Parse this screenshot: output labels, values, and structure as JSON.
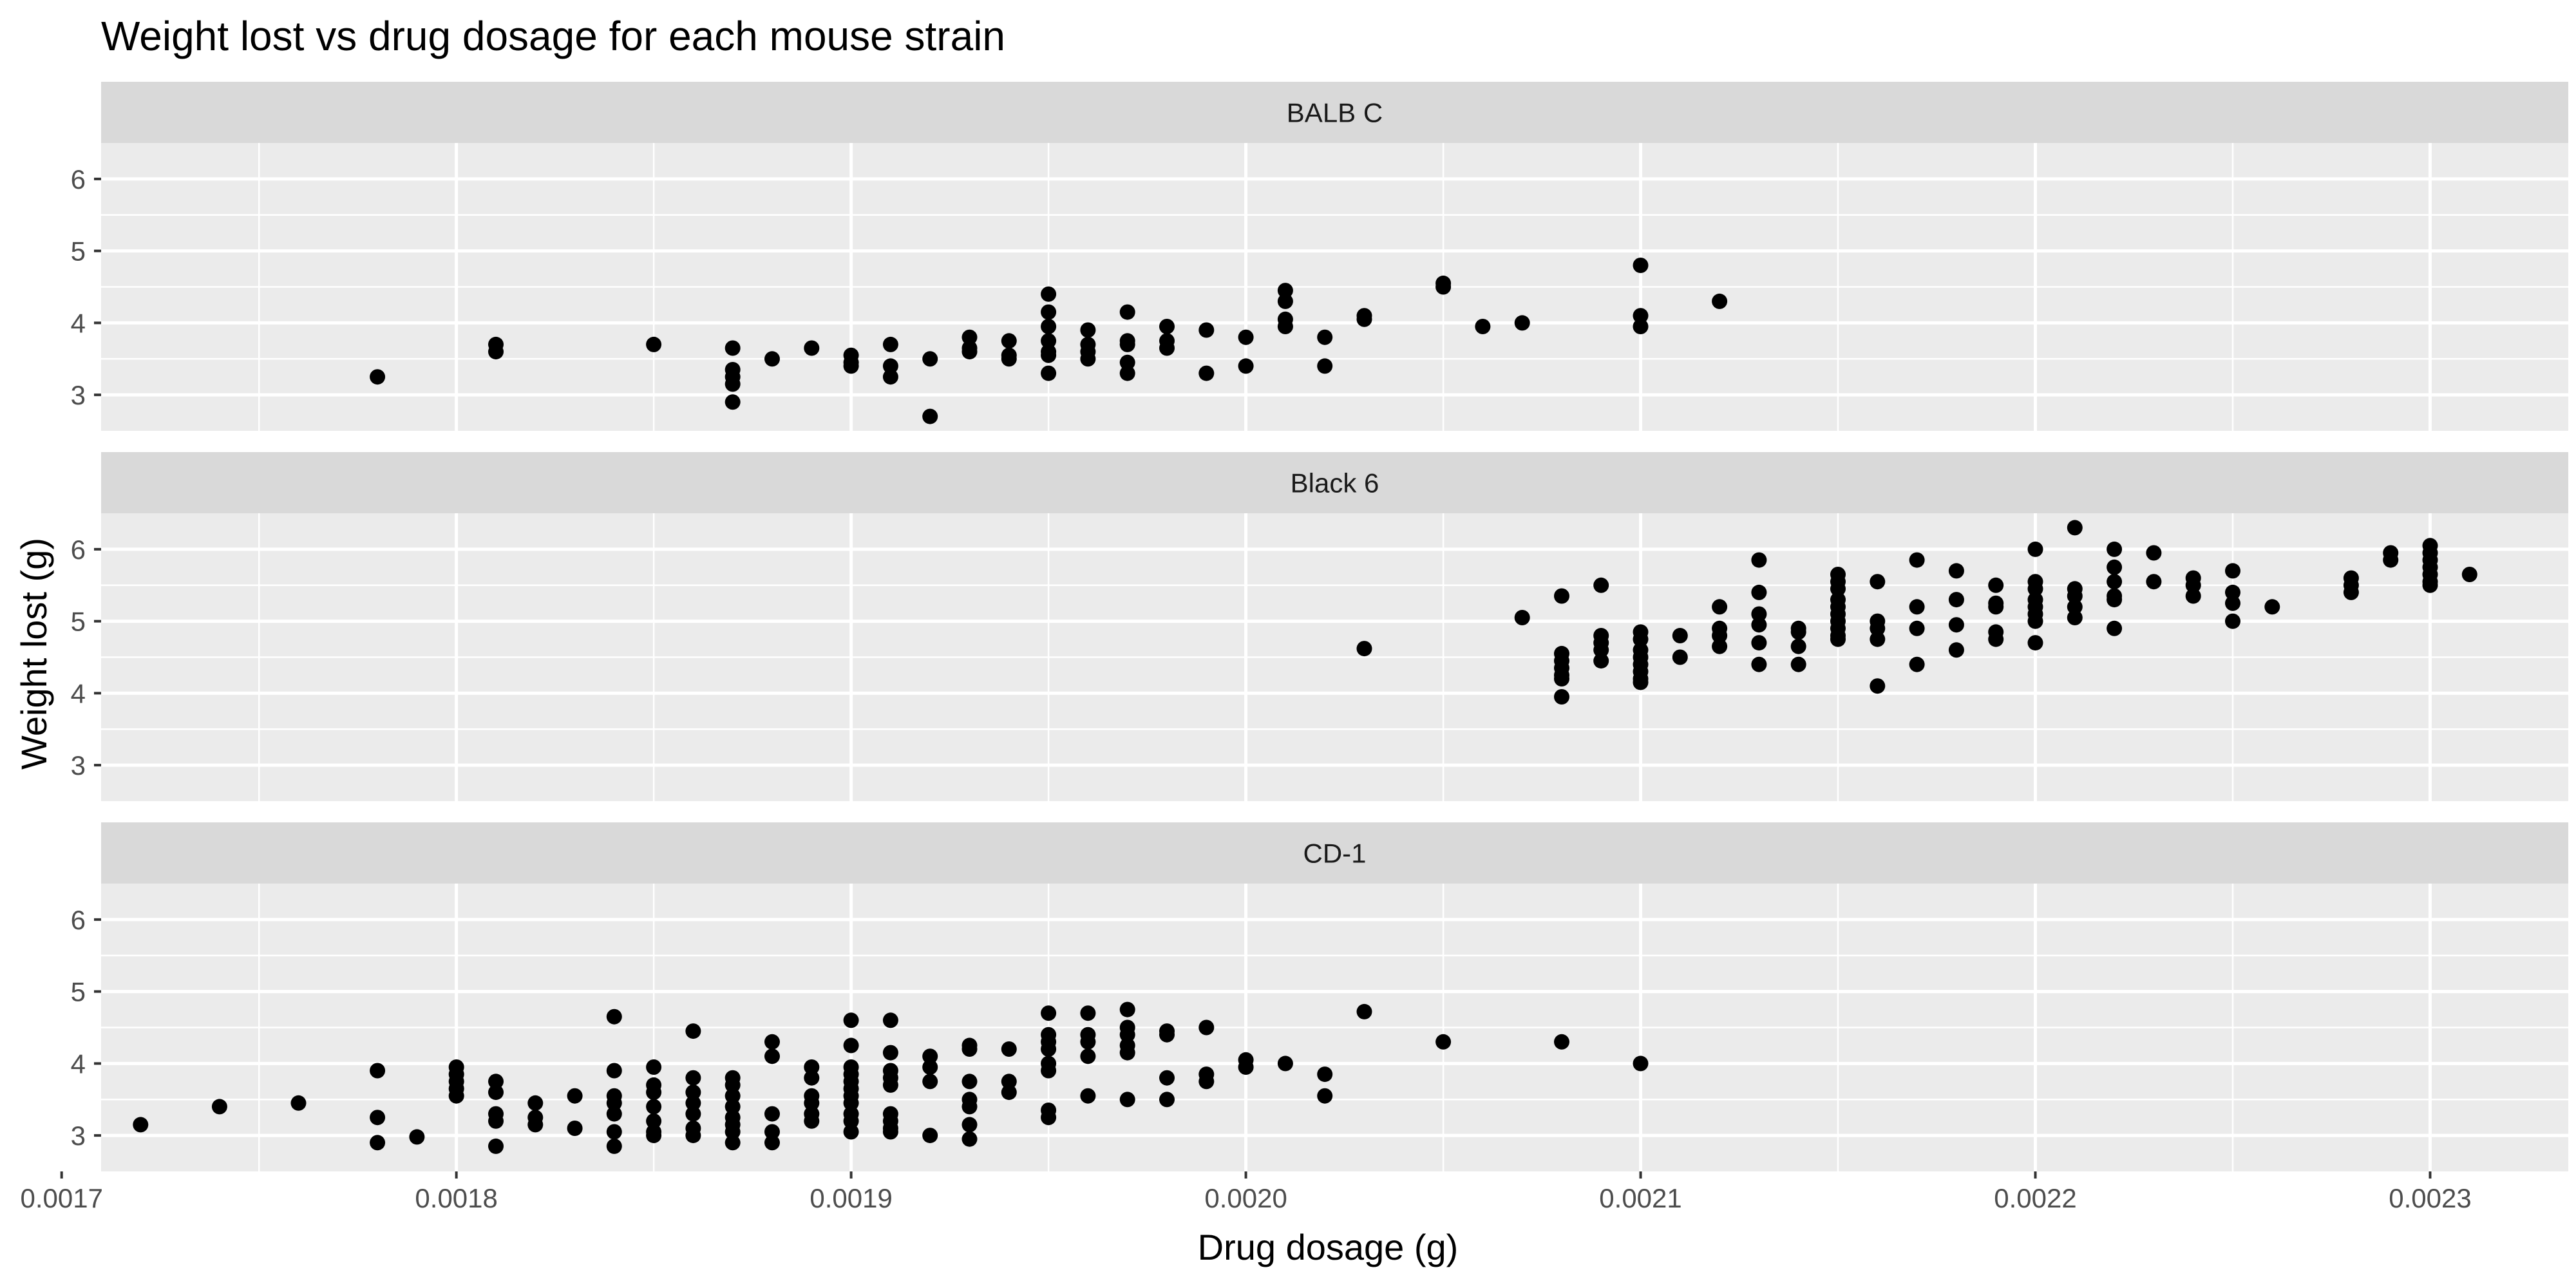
{
  "chart_data": {
    "type": "scatter",
    "title": "Weight lost vs drug dosage for each mouse strain",
    "xlabel": "Drug dosage (g)",
    "ylabel": "Weight lost (g)",
    "xlim": [
      0.00171,
      0.002335
    ],
    "ylim": [
      2.5,
      6.5
    ],
    "x_ticks": [
      0.0017,
      0.0018,
      0.0019,
      0.002,
      0.0021,
      0.0022,
      0.0023
    ],
    "x_tick_labels": [
      "0.0017",
      "0.0018",
      "0.0019",
      "0.0020",
      "0.0021",
      "0.0022",
      "0.0023"
    ],
    "y_ticks": [
      3,
      4,
      5,
      6
    ],
    "y_tick_labels": [
      "3",
      "4",
      "5",
      "6"
    ],
    "grid": true,
    "point_color": "#000000",
    "panel_background": "#ebebeb",
    "strip_background": "#d9d9d9",
    "gridline_color": "#ffffff",
    "facets": [
      {
        "name": "BALB C",
        "points": [
          [
            0.00178,
            3.25
          ],
          [
            0.00181,
            3.7
          ],
          [
            0.00181,
            3.6
          ],
          [
            0.00185,
            3.7
          ],
          [
            0.00187,
            3.65
          ],
          [
            0.00187,
            3.35
          ],
          [
            0.00187,
            3.25
          ],
          [
            0.00187,
            3.15
          ],
          [
            0.00187,
            2.9
          ],
          [
            0.00188,
            3.5
          ],
          [
            0.00189,
            3.65
          ],
          [
            0.0019,
            3.55
          ],
          [
            0.0019,
            3.45
          ],
          [
            0.0019,
            3.4
          ],
          [
            0.00191,
            3.7
          ],
          [
            0.00191,
            3.4
          ],
          [
            0.00191,
            3.25
          ],
          [
            0.00192,
            3.5
          ],
          [
            0.00192,
            2.7
          ],
          [
            0.00193,
            3.8
          ],
          [
            0.00193,
            3.65
          ],
          [
            0.00193,
            3.6
          ],
          [
            0.00194,
            3.75
          ],
          [
            0.00194,
            3.55
          ],
          [
            0.00194,
            3.5
          ],
          [
            0.00195,
            4.4
          ],
          [
            0.00195,
            4.15
          ],
          [
            0.00195,
            3.95
          ],
          [
            0.00195,
            3.75
          ],
          [
            0.00195,
            3.6
          ],
          [
            0.00195,
            3.55
          ],
          [
            0.00195,
            3.3
          ],
          [
            0.00196,
            3.9
          ],
          [
            0.00196,
            3.7
          ],
          [
            0.00196,
            3.6
          ],
          [
            0.00196,
            3.5
          ],
          [
            0.00197,
            4.15
          ],
          [
            0.00197,
            3.75
          ],
          [
            0.00197,
            3.7
          ],
          [
            0.00197,
            3.45
          ],
          [
            0.00197,
            3.3
          ],
          [
            0.00198,
            3.95
          ],
          [
            0.00198,
            3.75
          ],
          [
            0.00198,
            3.65
          ],
          [
            0.00199,
            3.9
          ],
          [
            0.00199,
            3.3
          ],
          [
            0.002,
            3.8
          ],
          [
            0.002,
            3.4
          ],
          [
            0.00201,
            4.45
          ],
          [
            0.00201,
            4.3
          ],
          [
            0.00201,
            4.05
          ],
          [
            0.00201,
            3.95
          ],
          [
            0.00202,
            3.8
          ],
          [
            0.00202,
            3.4
          ],
          [
            0.00203,
            4.1
          ],
          [
            0.00203,
            4.05
          ],
          [
            0.00205,
            4.55
          ],
          [
            0.00205,
            4.5
          ],
          [
            0.00206,
            3.95
          ],
          [
            0.00207,
            4.0
          ],
          [
            0.0021,
            4.8
          ],
          [
            0.0021,
            4.1
          ],
          [
            0.0021,
            3.95
          ],
          [
            0.00212,
            4.3
          ]
        ]
      },
      {
        "name": "Black 6",
        "points": [
          [
            0.00203,
            4.62
          ],
          [
            0.00207,
            5.05
          ],
          [
            0.00208,
            5.35
          ],
          [
            0.00208,
            4.55
          ],
          [
            0.00208,
            4.45
          ],
          [
            0.00208,
            4.35
          ],
          [
            0.00208,
            4.25
          ],
          [
            0.00208,
            4.2
          ],
          [
            0.00208,
            3.95
          ],
          [
            0.00209,
            5.5
          ],
          [
            0.00209,
            4.8
          ],
          [
            0.00209,
            4.7
          ],
          [
            0.00209,
            4.6
          ],
          [
            0.00209,
            4.45
          ],
          [
            0.0021,
            4.85
          ],
          [
            0.0021,
            4.75
          ],
          [
            0.0021,
            4.6
          ],
          [
            0.0021,
            4.5
          ],
          [
            0.0021,
            4.4
          ],
          [
            0.0021,
            4.3
          ],
          [
            0.0021,
            4.2
          ],
          [
            0.0021,
            4.15
          ],
          [
            0.00211,
            4.8
          ],
          [
            0.00211,
            4.5
          ],
          [
            0.00212,
            5.2
          ],
          [
            0.00212,
            4.9
          ],
          [
            0.00212,
            4.8
          ],
          [
            0.00212,
            4.65
          ],
          [
            0.00213,
            5.85
          ],
          [
            0.00213,
            5.4
          ],
          [
            0.00213,
            5.1
          ],
          [
            0.00213,
            4.95
          ],
          [
            0.00213,
            4.7
          ],
          [
            0.00213,
            4.4
          ],
          [
            0.00214,
            4.9
          ],
          [
            0.00214,
            4.85
          ],
          [
            0.00214,
            4.65
          ],
          [
            0.00214,
            4.4
          ],
          [
            0.00215,
            5.65
          ],
          [
            0.00215,
            5.55
          ],
          [
            0.00215,
            5.45
          ],
          [
            0.00215,
            5.3
          ],
          [
            0.00215,
            5.2
          ],
          [
            0.00215,
            5.1
          ],
          [
            0.00215,
            5.0
          ],
          [
            0.00215,
            4.9
          ],
          [
            0.00215,
            4.8
          ],
          [
            0.00215,
            4.75
          ],
          [
            0.00216,
            5.55
          ],
          [
            0.00216,
            5.0
          ],
          [
            0.00216,
            4.9
          ],
          [
            0.00216,
            4.75
          ],
          [
            0.00216,
            4.1
          ],
          [
            0.00217,
            5.85
          ],
          [
            0.00217,
            5.2
          ],
          [
            0.00217,
            4.9
          ],
          [
            0.00217,
            4.4
          ],
          [
            0.00218,
            5.7
          ],
          [
            0.00218,
            5.3
          ],
          [
            0.00218,
            4.95
          ],
          [
            0.00218,
            4.6
          ],
          [
            0.00219,
            5.5
          ],
          [
            0.00219,
            5.25
          ],
          [
            0.00219,
            5.2
          ],
          [
            0.00219,
            4.85
          ],
          [
            0.00219,
            4.75
          ],
          [
            0.0022,
            6.0
          ],
          [
            0.0022,
            5.55
          ],
          [
            0.0022,
            5.45
          ],
          [
            0.0022,
            5.3
          ],
          [
            0.0022,
            5.2
          ],
          [
            0.0022,
            5.1
          ],
          [
            0.0022,
            5.0
          ],
          [
            0.0022,
            4.7
          ],
          [
            0.00221,
            6.3
          ],
          [
            0.00221,
            5.45
          ],
          [
            0.00221,
            5.35
          ],
          [
            0.00221,
            5.2
          ],
          [
            0.00221,
            5.05
          ],
          [
            0.00222,
            6.0
          ],
          [
            0.00222,
            5.75
          ],
          [
            0.00222,
            5.55
          ],
          [
            0.00222,
            5.35
          ],
          [
            0.00222,
            5.3
          ],
          [
            0.00222,
            4.9
          ],
          [
            0.00223,
            5.95
          ],
          [
            0.00223,
            5.55
          ],
          [
            0.00224,
            5.6
          ],
          [
            0.00224,
            5.5
          ],
          [
            0.00224,
            5.35
          ],
          [
            0.00225,
            5.7
          ],
          [
            0.00225,
            5.4
          ],
          [
            0.00225,
            5.25
          ],
          [
            0.00225,
            5.0
          ],
          [
            0.00226,
            5.2
          ],
          [
            0.00228,
            5.6
          ],
          [
            0.00228,
            5.5
          ],
          [
            0.00228,
            5.4
          ],
          [
            0.00229,
            5.95
          ],
          [
            0.00229,
            5.85
          ],
          [
            0.0023,
            6.05
          ],
          [
            0.0023,
            5.95
          ],
          [
            0.0023,
            5.85
          ],
          [
            0.0023,
            5.75
          ],
          [
            0.0023,
            5.65
          ],
          [
            0.0023,
            5.55
          ],
          [
            0.0023,
            5.5
          ],
          [
            0.00231,
            5.65
          ]
        ]
      },
      {
        "name": "CD-1",
        "points": [
          [
            0.00172,
            3.15
          ],
          [
            0.00174,
            3.4
          ],
          [
            0.00176,
            3.45
          ],
          [
            0.00178,
            3.9
          ],
          [
            0.00178,
            3.25
          ],
          [
            0.00178,
            2.9
          ],
          [
            0.00179,
            2.98
          ],
          [
            0.0018,
            3.95
          ],
          [
            0.0018,
            3.85
          ],
          [
            0.0018,
            3.75
          ],
          [
            0.0018,
            3.65
          ],
          [
            0.0018,
            3.55
          ],
          [
            0.00181,
            3.75
          ],
          [
            0.00181,
            3.6
          ],
          [
            0.00181,
            3.3
          ],
          [
            0.00181,
            3.2
          ],
          [
            0.00181,
            2.85
          ],
          [
            0.00182,
            3.45
          ],
          [
            0.00182,
            3.25
          ],
          [
            0.00182,
            3.15
          ],
          [
            0.00183,
            3.55
          ],
          [
            0.00183,
            3.1
          ],
          [
            0.00184,
            4.65
          ],
          [
            0.00184,
            3.9
          ],
          [
            0.00184,
            3.55
          ],
          [
            0.00184,
            3.45
          ],
          [
            0.00184,
            3.3
          ],
          [
            0.00184,
            3.05
          ],
          [
            0.00184,
            2.85
          ],
          [
            0.00185,
            3.95
          ],
          [
            0.00185,
            3.7
          ],
          [
            0.00185,
            3.6
          ],
          [
            0.00185,
            3.4
          ],
          [
            0.00185,
            3.2
          ],
          [
            0.00185,
            3.05
          ],
          [
            0.00185,
            3.0
          ],
          [
            0.00186,
            4.45
          ],
          [
            0.00186,
            3.8
          ],
          [
            0.00186,
            3.6
          ],
          [
            0.00186,
            3.45
          ],
          [
            0.00186,
            3.3
          ],
          [
            0.00186,
            3.1
          ],
          [
            0.00186,
            3.0
          ],
          [
            0.00187,
            3.8
          ],
          [
            0.00187,
            3.7
          ],
          [
            0.00187,
            3.55
          ],
          [
            0.00187,
            3.4
          ],
          [
            0.00187,
            3.25
          ],
          [
            0.00187,
            3.15
          ],
          [
            0.00187,
            3.05
          ],
          [
            0.00187,
            2.9
          ],
          [
            0.00188,
            4.3
          ],
          [
            0.00188,
            4.1
          ],
          [
            0.00188,
            3.3
          ],
          [
            0.00188,
            3.05
          ],
          [
            0.00188,
            2.9
          ],
          [
            0.00189,
            3.95
          ],
          [
            0.00189,
            3.8
          ],
          [
            0.00189,
            3.55
          ],
          [
            0.00189,
            3.45
          ],
          [
            0.00189,
            3.3
          ],
          [
            0.00189,
            3.2
          ],
          [
            0.0019,
            4.6
          ],
          [
            0.0019,
            4.25
          ],
          [
            0.0019,
            3.95
          ],
          [
            0.0019,
            3.85
          ],
          [
            0.0019,
            3.75
          ],
          [
            0.0019,
            3.65
          ],
          [
            0.0019,
            3.55
          ],
          [
            0.0019,
            3.45
          ],
          [
            0.0019,
            3.3
          ],
          [
            0.0019,
            3.2
          ],
          [
            0.0019,
            3.05
          ],
          [
            0.00191,
            4.6
          ],
          [
            0.00191,
            4.15
          ],
          [
            0.00191,
            3.9
          ],
          [
            0.00191,
            3.8
          ],
          [
            0.00191,
            3.7
          ],
          [
            0.00191,
            3.3
          ],
          [
            0.00191,
            3.2
          ],
          [
            0.00191,
            3.1
          ],
          [
            0.00191,
            3.05
          ],
          [
            0.00192,
            4.1
          ],
          [
            0.00192,
            3.95
          ],
          [
            0.00192,
            3.75
          ],
          [
            0.00192,
            3.0
          ],
          [
            0.00193,
            4.25
          ],
          [
            0.00193,
            4.2
          ],
          [
            0.00193,
            3.75
          ],
          [
            0.00193,
            3.5
          ],
          [
            0.00193,
            3.4
          ],
          [
            0.00193,
            3.15
          ],
          [
            0.00193,
            2.95
          ],
          [
            0.00194,
            4.2
          ],
          [
            0.00194,
            3.75
          ],
          [
            0.00194,
            3.6
          ],
          [
            0.00195,
            4.7
          ],
          [
            0.00195,
            4.4
          ],
          [
            0.00195,
            4.3
          ],
          [
            0.00195,
            4.2
          ],
          [
            0.00195,
            4.0
          ],
          [
            0.00195,
            3.9
          ],
          [
            0.00195,
            3.35
          ],
          [
            0.00195,
            3.25
          ],
          [
            0.00196,
            4.7
          ],
          [
            0.00196,
            4.4
          ],
          [
            0.00196,
            4.3
          ],
          [
            0.00196,
            4.1
          ],
          [
            0.00196,
            3.55
          ],
          [
            0.00197,
            4.75
          ],
          [
            0.00197,
            4.5
          ],
          [
            0.00197,
            4.4
          ],
          [
            0.00197,
            4.25
          ],
          [
            0.00197,
            4.15
          ],
          [
            0.00197,
            3.5
          ],
          [
            0.00198,
            4.45
          ],
          [
            0.00198,
            4.4
          ],
          [
            0.00198,
            3.8
          ],
          [
            0.00198,
            3.5
          ],
          [
            0.00199,
            4.5
          ],
          [
            0.00199,
            3.85
          ],
          [
            0.00199,
            3.75
          ],
          [
            0.002,
            4.05
          ],
          [
            0.002,
            3.95
          ],
          [
            0.00201,
            4.0
          ],
          [
            0.00202,
            3.85
          ],
          [
            0.00202,
            3.55
          ],
          [
            0.00203,
            4.72
          ],
          [
            0.00205,
            4.3
          ],
          [
            0.00208,
            4.3
          ],
          [
            0.0021,
            4.0
          ]
        ]
      }
    ]
  }
}
